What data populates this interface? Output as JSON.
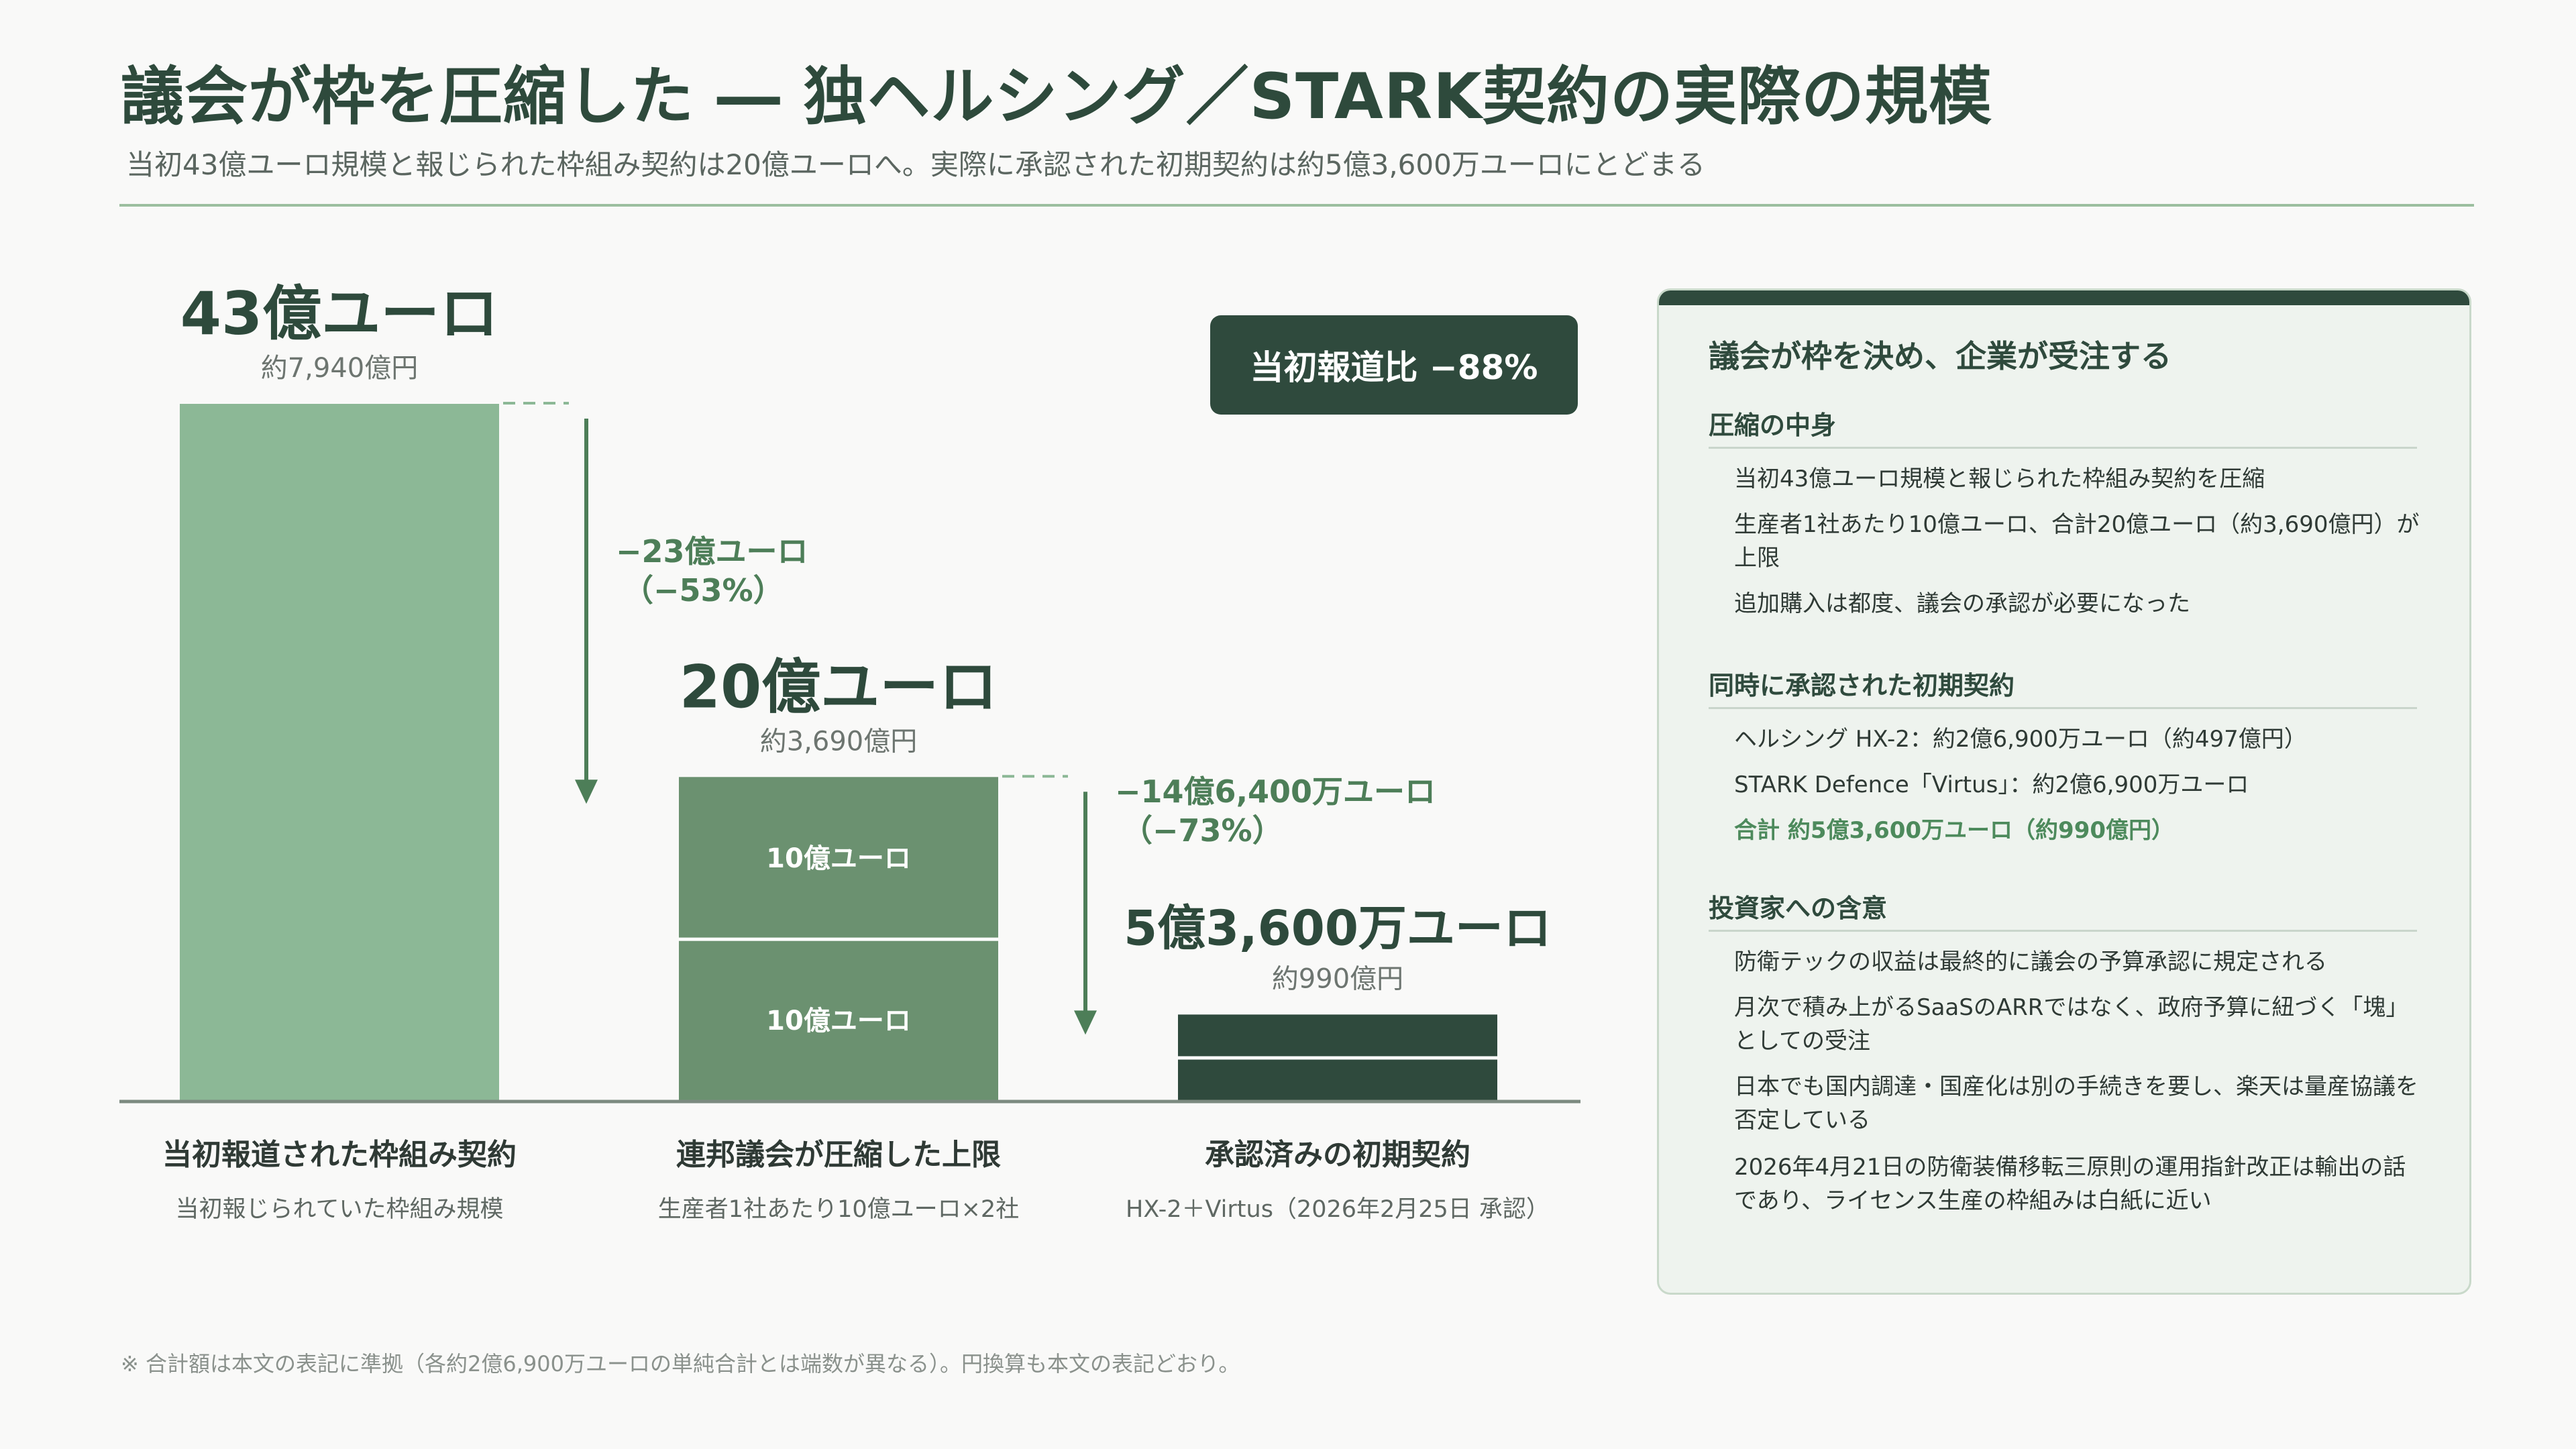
{
  "page": {
    "title": "議会が枠を圧縮した ― 独ヘルシング／STARK契約の実際の規模",
    "subtitle": "当初43億ユーロ規模と報じられた枠組み契約は20億ユーロへ。実際に承認された初期契約は約5億3,600万ユーロにとどまる",
    "badge": "当初報道比 −88%",
    "footnote": "※ 合計額は本文の表記に準拠（各約2億6,900万ユーロの単純合計とは端数が異なる）。円換算も本文の表記どおり。"
  },
  "colors": {
    "bar_light": "#8cb896",
    "bar_medium": "#6b9170",
    "bar_dark": "#2f4a3d",
    "accent_text": "#4d7e58",
    "title": "#2e4a3c"
  },
  "chart_data": {
    "type": "bar",
    "unit": "億ユーロ",
    "categories": [
      "当初報道された枠組み契約",
      "連邦議会が圧縮した上限",
      "承認済みの初期契約"
    ],
    "sublabels": [
      "当初報じられていた枠組み規模",
      "生産者1社あたり10億ユーロ×2社",
      "HX-2＋Virtus（2026年2月25日 承認）"
    ],
    "values": [
      43,
      20,
      5.36
    ],
    "value_labels": [
      "43億ユーロ",
      "20億ユーロ",
      "5億3,600万ユーロ"
    ],
    "yen_labels": [
      "約7,940億円",
      "約3,690億円",
      "約990億円"
    ],
    "segments": [
      [
        {
          "value": 43,
          "label": ""
        }
      ],
      [
        {
          "value": 10,
          "label": "10億ユーロ"
        },
        {
          "value": 10,
          "label": "10億ユーロ"
        }
      ],
      [
        {
          "value": 2.69,
          "label": ""
        },
        {
          "value": 2.67,
          "label": ""
        }
      ]
    ],
    "drops": [
      {
        "from": 0,
        "line1": "−23億ユーロ",
        "line2": "（−53%）"
      },
      {
        "from": 1,
        "line1": "−14億6,400万ユーロ",
        "line2": "（−73%）"
      }
    ],
    "ylim": [
      0,
      43
    ]
  },
  "panel": {
    "heading": "議会が枠を決め、企業が受注する",
    "sections": [
      {
        "title": "圧縮の中身",
        "items": [
          {
            "text": "当初43億ユーロ規模と報じられた枠組み契約を圧縮"
          },
          {
            "text": "生産者1社あたり10億ユーロ、合計20億ユーロ（約3,690億円）が上限"
          },
          {
            "text": "追加購入は都度、議会の承認が必要になった"
          }
        ]
      },
      {
        "title": "同時に承認された初期契約",
        "items": [
          {
            "text": "ヘルシング HX-2：約2億6,900万ユーロ（約497億円）"
          },
          {
            "text": "STARK Defence「Virtus」：約2億6,900万ユーロ"
          },
          {
            "text": "合計 約5億3,600万ユーロ（約990億円）",
            "highlight": true
          }
        ]
      },
      {
        "title": "投資家への含意",
        "items": [
          {
            "text": "防衛テックの収益は最終的に議会の予算承認に規定される"
          },
          {
            "text": "月次で積み上がるSaaSのARRではなく、政府予算に紐づく「塊」としての受注"
          },
          {
            "text": "日本でも国内調達・国産化は別の手続きを要し、楽天は量産協議を否定している"
          },
          {
            "text": "2026年4月21日の防衛装備移転三原則の運用指針改正は輸出の話であり、ライセンス生産の枠組みは白紙に近い"
          }
        ]
      }
    ]
  }
}
